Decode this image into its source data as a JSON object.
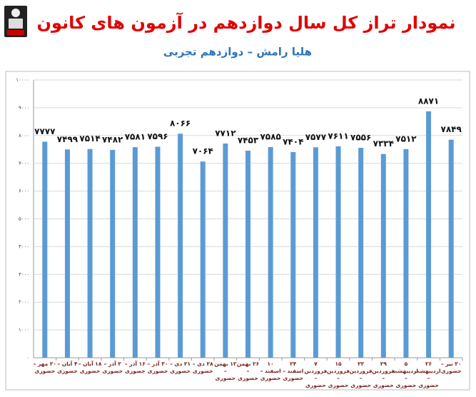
{
  "chart_data": {
    "type": "bar",
    "title": "نمودار تراز کل سال دوازدهم در آزمون های کانون",
    "subtitle": "هلیا رامش – دوازدهم تجربی",
    "categories": [
      "۲۰ مهر – حضوری",
      "۴ آبان – حضوری",
      "۱۸ آبان – حضوری",
      "۲ آذر – حضوری",
      "۱۶ آذر – حضوری",
      "۳۰ آذر – حضوری",
      "۲۱ دی – حضوری",
      "۲۸ دی – حضوری",
      "۱۲ بهمن – حضوری",
      "۲۶ بهمن – حضوری",
      "۱۰ اسفند – حضوری",
      "۲۴ اسفند – حضوری",
      "۷ فروردین – حضوری",
      "۱۵ فروردین – حضوری",
      "۲۲ فروردین – حضوری",
      "۲۹ فروردین – حضوری",
      "۵ اردیبهشت – حضوری",
      "۲۶ اردیبهشت – حضوری",
      "۲۰ تیر – حضوری"
    ],
    "values": [
      7777,
      7499,
      7514,
      7482,
      7581,
      7596,
      8066,
      7064,
      7712,
      7453,
      7585,
      7404,
      7577,
      7611,
      7556,
      7334,
      7512,
      8871,
      7849
    ],
    "value_labels": [
      "۷۷۷۷",
      "۷۴۹۹",
      "۷۵۱۴",
      "۷۴۸۲",
      "۷۵۸۱",
      "۷۵۹۶",
      "۸۰۶۶",
      "۷۰۶۴",
      "۷۷۱۲",
      "۷۴۵۳",
      "۷۵۸۵",
      "۷۴۰۴",
      "۷۵۷۷",
      "۷۶۱۱",
      "۷۵۵۶",
      "۷۳۳۴",
      "۷۵۱۲",
      "۸۸۷۱",
      "۷۸۴۹"
    ],
    "color": "#5b9bd5",
    "ylim": [
      0,
      10000
    ],
    "yticks": [
      {
        "value": 0,
        "label": "۰"
      },
      {
        "value": 1000,
        "label": "۱۰۰۰"
      },
      {
        "value": 2000,
        "label": "۲۰۰۰"
      },
      {
        "value": 3000,
        "label": "۳۰۰۰"
      },
      {
        "value": 4000,
        "label": "۴۰۰۰"
      },
      {
        "value": 5000,
        "label": "۵۰۰۰"
      },
      {
        "value": 6000,
        "label": "۶۰۰۰"
      },
      {
        "value": 7000,
        "label": "۷۰۰۰"
      },
      {
        "value": 8000,
        "label": "۸۰۰۰"
      },
      {
        "value": 9000,
        "label": "۹۰۰۰"
      },
      {
        "value": 10000,
        "label": "۱۰۰۰۰"
      }
    ],
    "grid": true
  }
}
